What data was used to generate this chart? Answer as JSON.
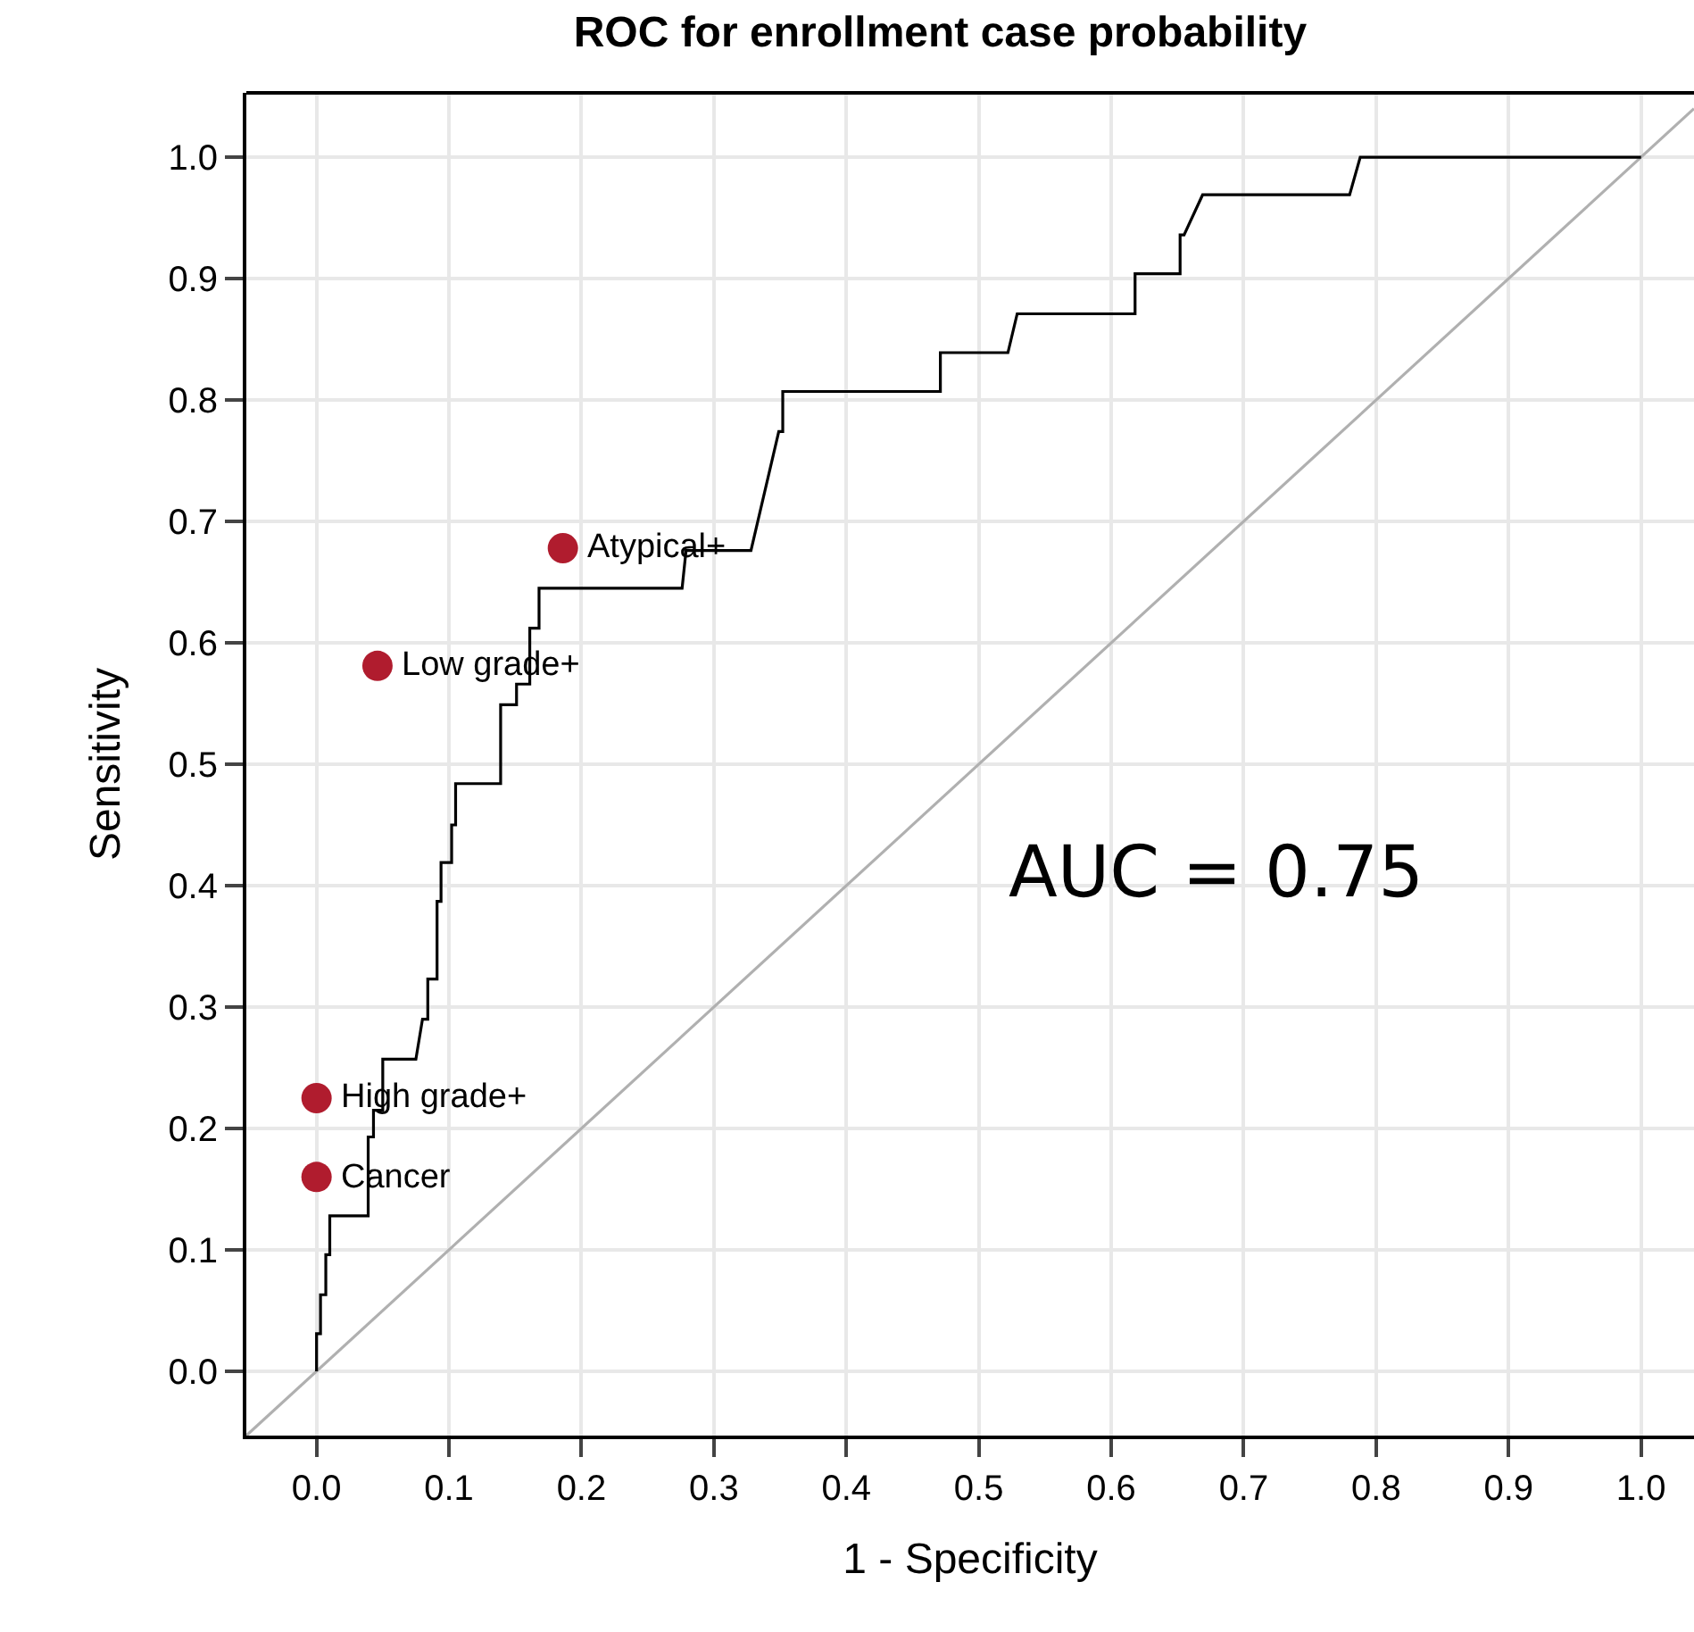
{
  "chart_data": {
    "type": "line",
    "title": "ROC for enrollment case probability",
    "xlabel": "1 - Specificity",
    "ylabel": "Sensitivity",
    "xlim": [
      -0.053,
      1.04
    ],
    "ylim": [
      -0.053,
      1.053
    ],
    "xticks": [
      {
        "value": 0,
        "label": "0.0"
      },
      0.1,
      0.2,
      0.3,
      0.4,
      0.5,
      0.6,
      0.7,
      0.8,
      0.9,
      {
        "value": 1,
        "label": "1.0"
      }
    ],
    "yticks": [
      {
        "value": 0,
        "label": "0.0"
      },
      0.1,
      0.2,
      0.3,
      0.4,
      0.5,
      0.6,
      0.7,
      0.8,
      0.9,
      {
        "value": 1,
        "label": "1.0"
      }
    ],
    "grid": true,
    "series": [
      {
        "color": "#b0b0b0",
        "marker": "none",
        "x": [
          -0.053,
          1.04
        ],
        "values": [
          -0.053,
          1.04
        ]
      },
      {
        "color": "#000000",
        "marker": "none",
        "x": [
          0,
          0,
          0.003,
          0.003,
          0.007,
          0.007,
          0.01,
          0.01,
          0.014,
          0.014,
          0.039,
          0.039,
          0.043,
          0.043,
          0.05,
          0.05,
          0.075,
          0.08,
          0.084,
          0.084,
          0.091,
          0.091,
          0.094,
          0.094,
          0.102,
          0.102,
          0.105,
          0.105,
          0.139,
          0.139,
          0.151,
          0.151,
          0.161,
          0.161,
          0.168,
          0.168,
          0.276,
          0.279,
          0.328,
          0.349,
          0.352,
          0.352,
          0.471,
          0.471,
          0.522,
          0.529,
          0.618,
          0.618,
          0.652,
          0.652,
          0.655,
          0.669,
          0.78,
          0.788,
          1.0
        ],
        "values": [
          0,
          0.031,
          0.031,
          0.063,
          0.063,
          0.096,
          0.096,
          0.128,
          0.128,
          0.128,
          0.128,
          0.193,
          0.193,
          0.215,
          0.215,
          0.257,
          0.257,
          0.29,
          0.29,
          0.323,
          0.323,
          0.387,
          0.387,
          0.419,
          0.419,
          0.45,
          0.45,
          0.484,
          0.484,
          0.549,
          0.549,
          0.566,
          0.566,
          0.612,
          0.612,
          0.645,
          0.645,
          0.676,
          0.676,
          0.774,
          0.774,
          0.807,
          0.807,
          0.839,
          0.839,
          0.871,
          0.871,
          0.904,
          0.904,
          0.936,
          0.936,
          0.969,
          0.969,
          1.0,
          1.0
        ]
      },
      {
        "type": "scatter",
        "color": "#b01c2e",
        "marker": "circle",
        "x": [
          0.186,
          0.046,
          0,
          0
        ],
        "values": [
          0.678,
          0.581,
          0.225,
          0.16
        ]
      }
    ],
    "annotations": [
      {
        "text": "Atypical+",
        "x": 0.186,
        "y": 0.678
      },
      {
        "text": "Low grade+",
        "x": 0.046,
        "y": 0.581
      },
      {
        "text": "High grade+",
        "x": 0,
        "y": 0.225
      },
      {
        "text": "Cancer",
        "x": 0,
        "y": 0.16
      },
      "AUC = 0.75"
    ]
  }
}
